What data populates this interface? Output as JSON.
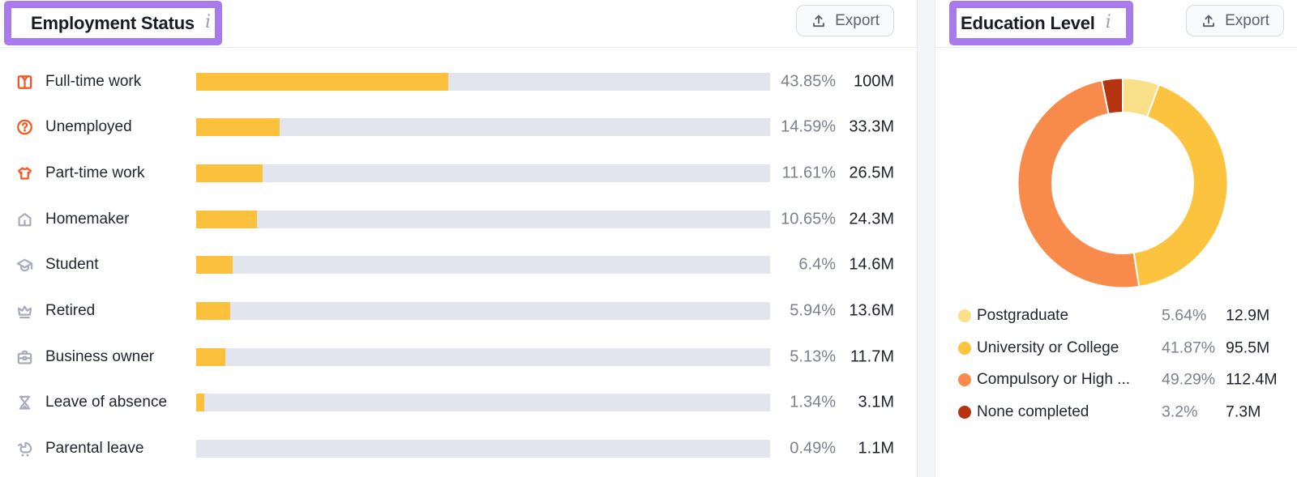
{
  "ui": {
    "export_label": "Export",
    "info_icon": "info-icon",
    "accent_purple": "#A97AEE",
    "bar_color": "#FCC13C",
    "bar_track_color": "#E2E4EE"
  },
  "chart_data": [
    {
      "type": "bar",
      "title": "Employment Status",
      "xlabel": "",
      "ylabel": "",
      "value_format": "percent of audience with absolute count",
      "rows": [
        {
          "label": "Full-time work",
          "pct": 43.85,
          "pct_label": "43.85%",
          "value": "100M",
          "icon": "shirt-icon",
          "tone": "orange"
        },
        {
          "label": "Unemployed",
          "pct": 14.59,
          "pct_label": "14.59%",
          "value": "33.3M",
          "icon": "help-circle-icon",
          "tone": "orange"
        },
        {
          "label": "Part-time work",
          "pct": 11.61,
          "pct_label": "11.61%",
          "value": "26.5M",
          "icon": "tshirt-icon",
          "tone": "orange"
        },
        {
          "label": "Homemaker",
          "pct": 10.65,
          "pct_label": "10.65%",
          "value": "24.3M",
          "icon": "home-icon",
          "tone": "gray"
        },
        {
          "label": "Student",
          "pct": 6.4,
          "pct_label": "6.4%",
          "value": "14.6M",
          "icon": "graduation-cap-icon",
          "tone": "gray"
        },
        {
          "label": "Retired",
          "pct": 5.94,
          "pct_label": "5.94%",
          "value": "13.6M",
          "icon": "crown-icon",
          "tone": "gray"
        },
        {
          "label": "Business owner",
          "pct": 5.13,
          "pct_label": "5.13%",
          "value": "11.7M",
          "icon": "briefcase-icon",
          "tone": "gray"
        },
        {
          "label": "Leave of absence",
          "pct": 1.34,
          "pct_label": "1.34%",
          "value": "3.1M",
          "icon": "hourglass-icon",
          "tone": "gray"
        },
        {
          "label": "Parental leave",
          "pct": 0.49,
          "pct_label": "0.49%",
          "value": "1.1M",
          "icon": "stroller-icon",
          "tone": "gray"
        }
      ]
    },
    {
      "type": "donut",
      "title": "Education Level",
      "legend_position": "bottom",
      "slices": [
        {
          "label": "Postgraduate",
          "pct": 5.64,
          "pct_label": "5.64%",
          "value": "12.9M",
          "color": "#FAE088"
        },
        {
          "label": "University or College",
          "pct": 41.87,
          "pct_label": "41.87%",
          "value": "95.5M",
          "color": "#FBC33E"
        },
        {
          "label": "Compulsory or High ...",
          "pct": 49.29,
          "pct_label": "49.29%",
          "value": "112.4M",
          "color": "#F88B4B"
        },
        {
          "label": "None completed",
          "pct": 3.2,
          "pct_label": "3.2%",
          "value": "7.3M",
          "color": "#B5330F"
        }
      ]
    }
  ]
}
